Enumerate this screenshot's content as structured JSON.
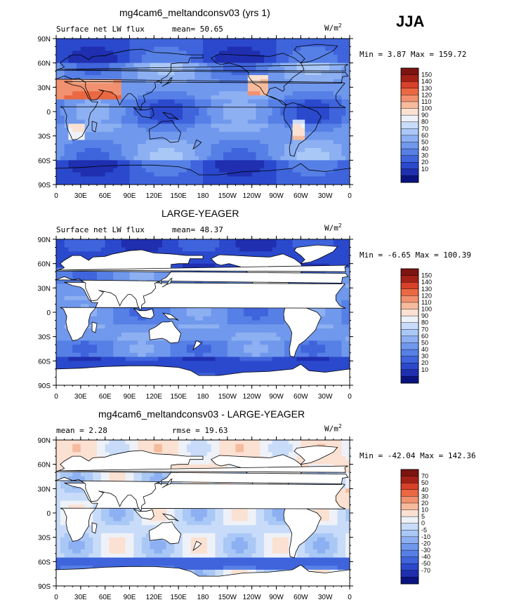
{
  "season": "JJA",
  "panels": [
    {
      "title": "mg4cam6_meltandconsv03 (yrs 1)",
      "left_label": "Surface net LW flux",
      "stat1": "mean=   50.65",
      "stat2": "",
      "units": "W/m",
      "units_sup": "2",
      "minmax": "Min =    3.87 Max = 159.72",
      "land_masked": false,
      "colorbar_labels": [
        "150",
        "140",
        "130",
        "120",
        "110",
        "100",
        "90",
        "80",
        "70",
        "60",
        "50",
        "40",
        "30",
        "20",
        "10"
      ]
    },
    {
      "title": "LARGE-YEAGER",
      "left_label": "Surface net LW flux",
      "stat1": "mean=   48.37",
      "stat2": "",
      "units": "W/m",
      "units_sup": "2",
      "minmax": "Min =  -6.65 Max = 100.39",
      "land_masked": true,
      "colorbar_labels": [
        "150",
        "140",
        "130",
        "120",
        "110",
        "100",
        "90",
        "80",
        "70",
        "60",
        "50",
        "40",
        "30",
        "20",
        "10"
      ]
    },
    {
      "title": "mg4cam6_meltandconsv03 - LARGE-YEAGER",
      "left_label": "mean =    2.28",
      "stat1": "",
      "stat2": "rmse =   19.63",
      "units": "W/m",
      "units_sup": "2",
      "minmax": "Min = -42.04 Max = 142.36",
      "land_masked": true,
      "colorbar_labels": [
        "70",
        "50",
        "40",
        "30",
        "20",
        "10",
        "5",
        "0",
        "-5",
        "-10",
        "-20",
        "-30",
        "-40",
        "-50",
        "-70"
      ]
    }
  ],
  "lat_labels": [
    "90N",
    "60N",
    "30N",
    "0",
    "30S",
    "60S",
    "90S"
  ],
  "lon_labels": [
    "0",
    "30E",
    "60E",
    "90E",
    "120E",
    "150E",
    "180",
    "150W",
    "120W",
    "90W",
    "60W",
    "30W",
    "0"
  ],
  "colors": {
    "sequential": [
      "#0a1480",
      "#1f2fb0",
      "#2b49cd",
      "#3f64dc",
      "#5680e6",
      "#7098ec",
      "#8db0f2",
      "#aac8f6",
      "#c8dcf9",
      "#eef2f8",
      "#fbe1d2",
      "#f6bb9d",
      "#f19170",
      "#ea6842",
      "#d8412a",
      "#a42118",
      "#7d1410"
    ],
    "diverging": [
      "#0a1480",
      "#1f2fb0",
      "#2b49cd",
      "#3f64dc",
      "#5680e6",
      "#7098ec",
      "#8db0f2",
      "#aac8f6",
      "#c8dcf9",
      "#eef2f8",
      "#fbe1d2",
      "#f6bb9d",
      "#f19170",
      "#ea6842",
      "#d8412a",
      "#a42118",
      "#7d1410"
    ],
    "land": "#ffffff",
    "coast": "#000000"
  }
}
